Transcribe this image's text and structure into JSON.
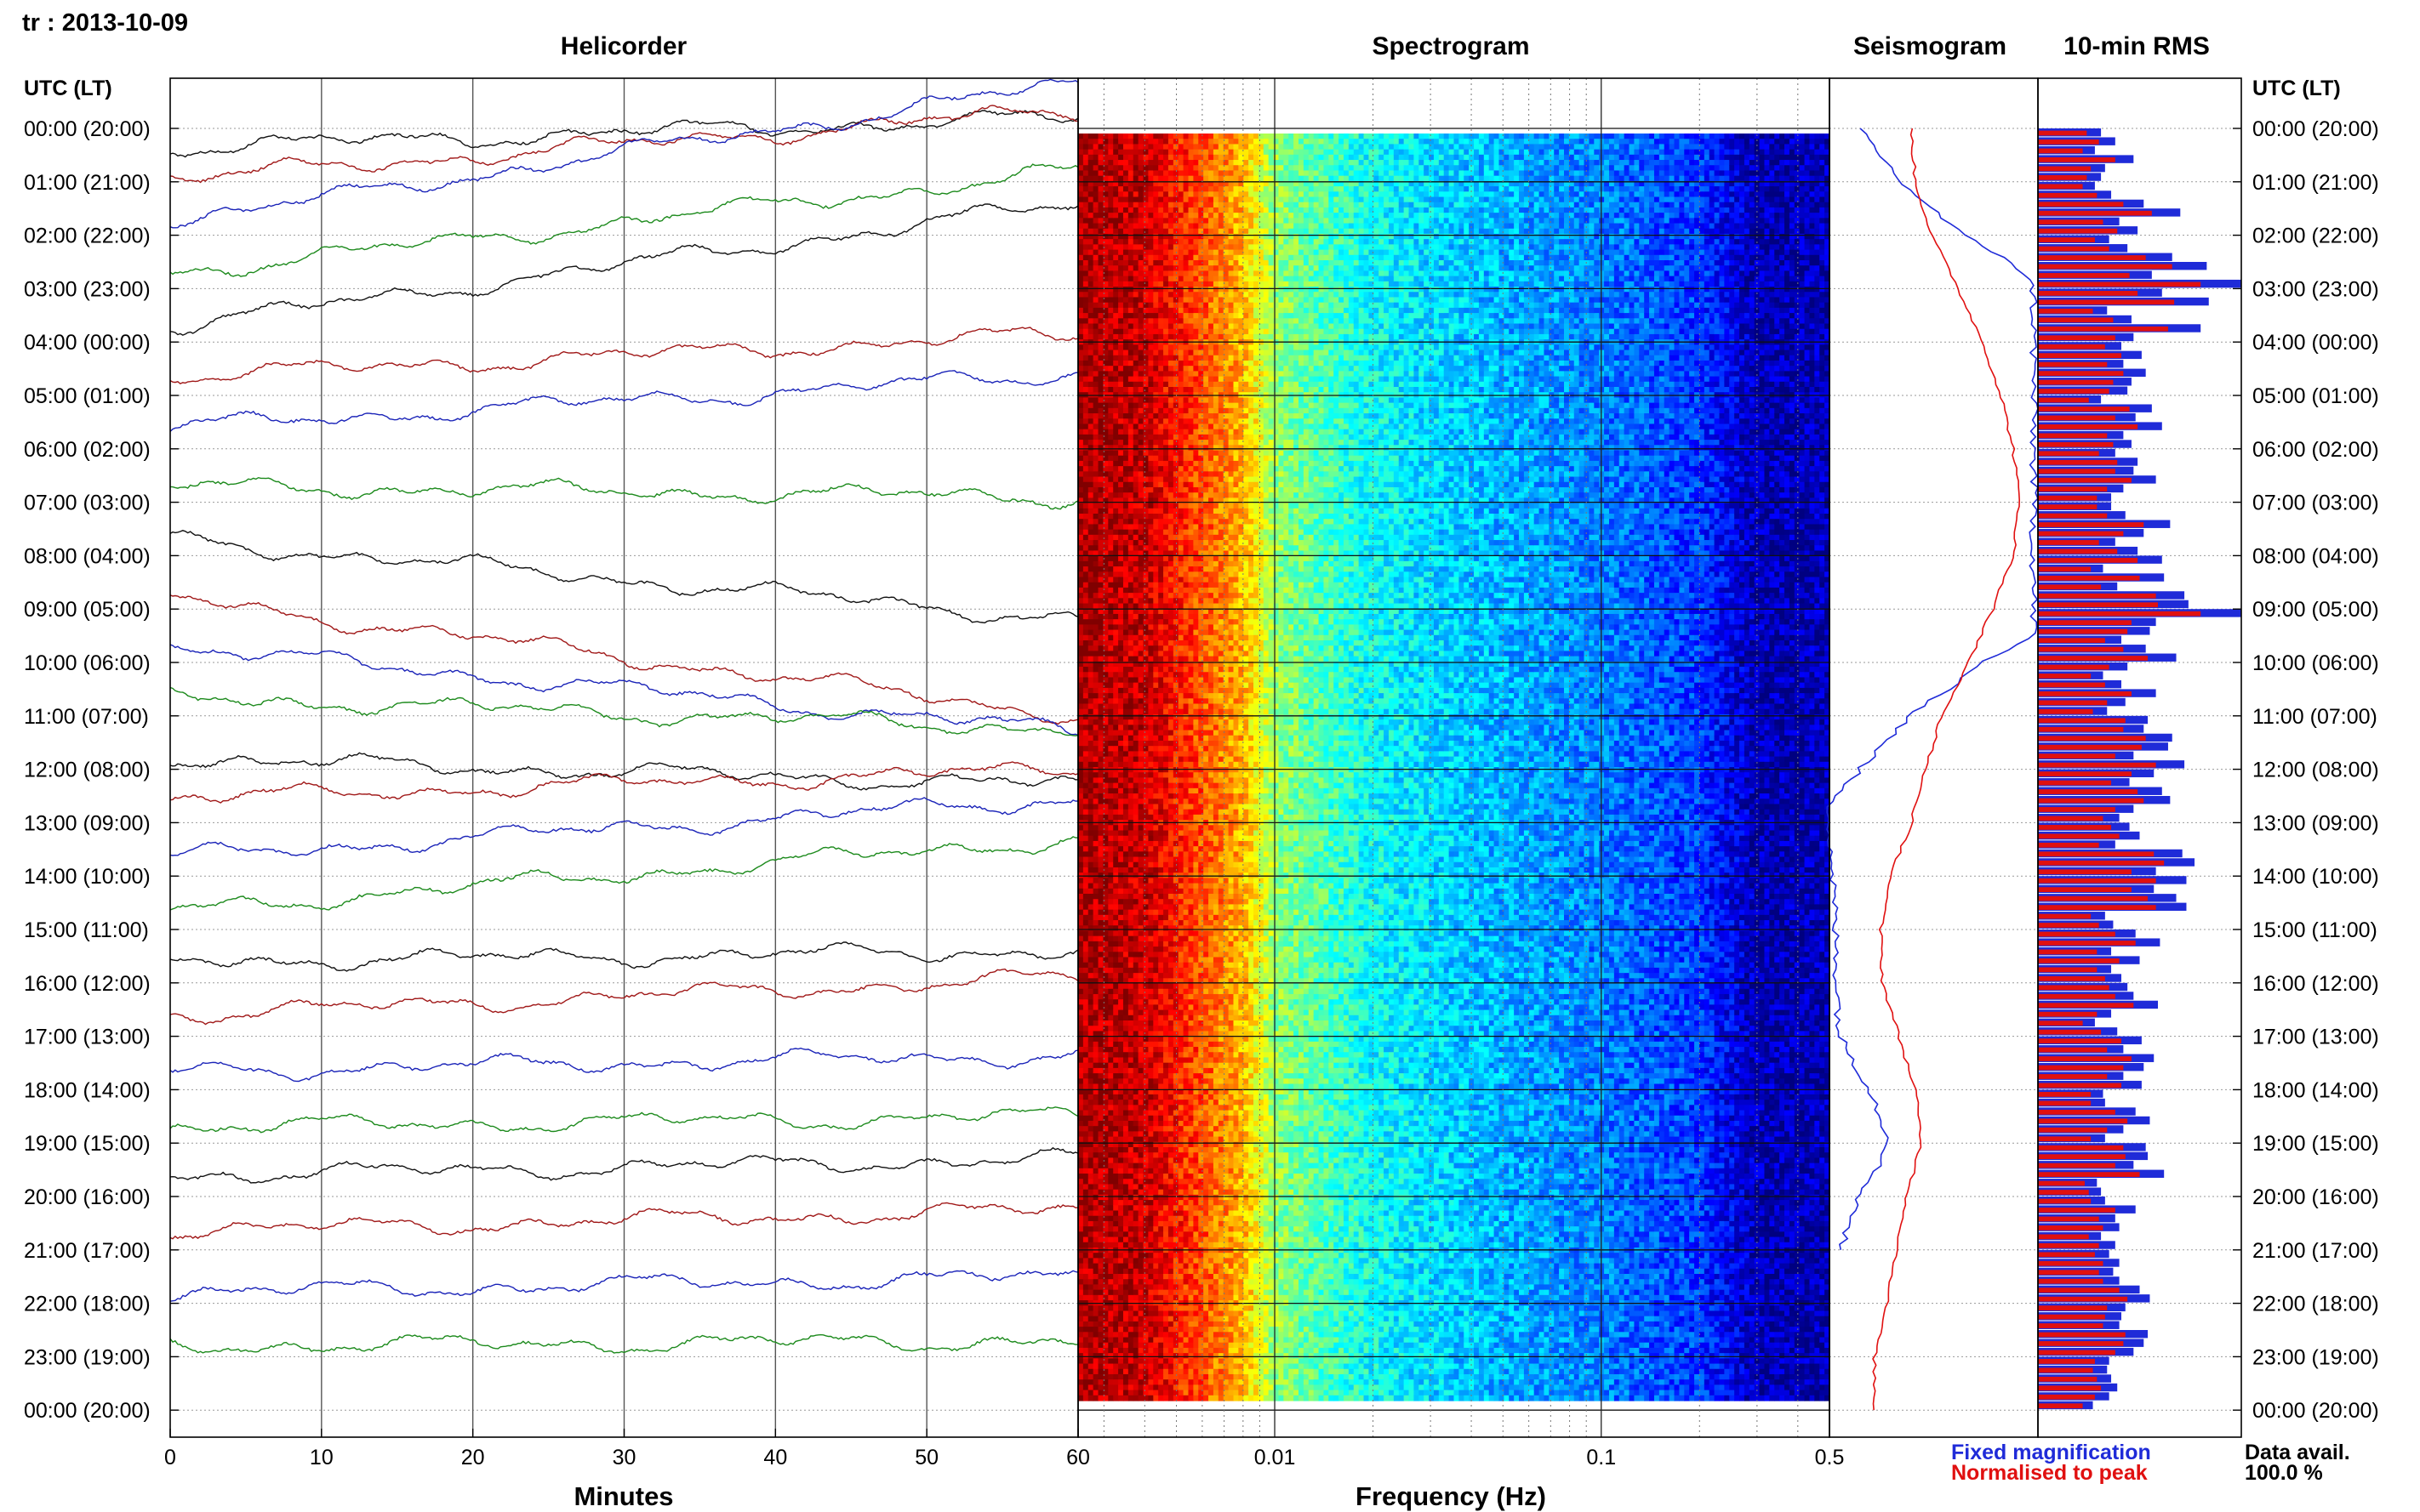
{
  "header": {
    "station_date": "tr : 2013-10-09"
  },
  "panel_titles": {
    "helicorder": "Helicorder",
    "spectrogram": "Spectrogram",
    "seismogram": "Seismogram",
    "rms": "10-min RMS"
  },
  "time_axis": {
    "left_header": "UTC (LT)",
    "right_header": "UTC (LT)",
    "labels": [
      "00:00 (20:00)",
      "01:00 (21:00)",
      "02:00 (22:00)",
      "03:00 (23:00)",
      "04:00 (00:00)",
      "05:00 (01:00)",
      "06:00 (02:00)",
      "07:00 (03:00)",
      "08:00 (04:00)",
      "09:00 (05:00)",
      "10:00 (06:00)",
      "11:00 (07:00)",
      "12:00 (08:00)",
      "13:00 (09:00)",
      "14:00 (10:00)",
      "15:00 (11:00)",
      "16:00 (12:00)",
      "17:00 (13:00)",
      "18:00 (14:00)",
      "19:00 (15:00)",
      "20:00 (16:00)",
      "21:00 (17:00)",
      "22:00 (18:00)",
      "23:00 (19:00)",
      "00:00 (20:00)"
    ]
  },
  "helicorder_axis": {
    "xlabel": "Minutes",
    "ticks": [
      "0",
      "10",
      "20",
      "30",
      "40",
      "50",
      "60"
    ]
  },
  "spectrogram_axis": {
    "xlabel": "Frequency (Hz)",
    "ticks": [
      "0.01",
      "0.1",
      "0.5"
    ]
  },
  "legend": {
    "fixed": "Fixed magnification",
    "normalised": "Normalised to peak",
    "fixed_color": "#1f2bd8",
    "normalised_color": "#e01010"
  },
  "data_availability": {
    "label": "Data avail.",
    "value": "100.0 %"
  },
  "colors": {
    "trace_cycle": [
      "#111111",
      "#a01818",
      "#1a23b8",
      "#1c8a1c"
    ],
    "rms_fixed": "#1f2bd8",
    "rms_normalised": "#e01010"
  },
  "chart_data": [
    {
      "type": "line",
      "panel": "Helicorder",
      "title": "Helicorder",
      "xlabel": "Minutes",
      "xlim": [
        0,
        60
      ],
      "rows": 24,
      "row_offsets_vs_hour_baseline": [
        0.35,
        -0.05,
        -0.25,
        -0.3,
        -0.3,
        -0.35,
        -0.4,
        -0.3,
        -0.3,
        -0.2,
        -0.3,
        -0.35,
        -0.2,
        -0.45,
        -0.35,
        -0.35,
        -0.4,
        -0.4,
        -0.35,
        -0.3,
        -0.4,
        -0.35,
        -0.2,
        -0.2
      ],
      "row_drifts_over_hour": [
        -0.55,
        -1.3,
        -2.6,
        -1.9,
        -2.3,
        -0.8,
        -1.0,
        0.2,
        1.5,
        2.2,
        1.6,
        0.6,
        0.5,
        -0.55,
        -1.1,
        -1.35,
        -0.2,
        -0.7,
        -0.3,
        -0.2,
        -0.3,
        -0.4,
        -0.3,
        -0.1
      ]
    },
    {
      "type": "heatmap",
      "panel": "Spectrogram",
      "title": "Spectrogram",
      "xlabel": "Frequency (Hz)",
      "xscale": "log",
      "xlim": [
        0.0025,
        0.5
      ],
      "colormap": "jet",
      "intensity_profile_by_frequency": {
        "freq": [
          0.0025,
          0.004,
          0.008,
          0.01,
          0.02,
          0.05,
          0.1,
          0.2,
          0.3,
          0.5
        ],
        "intensity": [
          0.96,
          0.93,
          0.7,
          0.52,
          0.38,
          0.3,
          0.25,
          0.18,
          0.05,
          0.05
        ]
      }
    },
    {
      "type": "line",
      "panel": "Seismogram",
      "title": "Seismogram",
      "series": [
        {
          "name": "Fixed magnification",
          "hour": [
            0,
            1,
            2,
            2.5,
            3,
            9.5,
            10,
            11,
            12,
            12.6,
            17,
            18,
            19,
            20,
            21
          ],
          "value": [
            0.15,
            0.35,
            0.65,
            0.9,
            1.0,
            1.0,
            0.75,
            0.4,
            0.15,
            0.0,
            0.05,
            0.2,
            0.3,
            0.15,
            0.05
          ]
        },
        {
          "name": "Normalised to peak",
          "hour": [
            0,
            1,
            2,
            3,
            4,
            5,
            6,
            7,
            8,
            9,
            10,
            11,
            12,
            13,
            14,
            15,
            16,
            17,
            18,
            19,
            20,
            21,
            22,
            23,
            24
          ],
          "value": [
            0.4,
            0.42,
            0.5,
            0.63,
            0.75,
            0.84,
            0.9,
            0.93,
            0.9,
            0.8,
            0.68,
            0.55,
            0.47,
            0.4,
            0.3,
            0.25,
            0.26,
            0.34,
            0.42,
            0.45,
            0.38,
            0.33,
            0.28,
            0.22,
            0.22
          ]
        }
      ]
    },
    {
      "type": "bar",
      "panel": "10-min RMS",
      "title": "10-min RMS",
      "orientation": "horizontal",
      "bins": 144,
      "series": [
        {
          "name": "Fixed magnification",
          "values": [
            0.31,
            0.38,
            0.28,
            0.47,
            0.33,
            0.31,
            0.28,
            0.36,
            0.52,
            0.7,
            0.4,
            0.49,
            0.35,
            0.44,
            0.66,
            0.83,
            0.56,
            1.0,
            0.61,
            0.84,
            0.34,
            0.46,
            0.8,
            0.47,
            0.41,
            0.51,
            0.42,
            0.53,
            0.46,
            0.44,
            0.31,
            0.56,
            0.48,
            0.61,
            0.42,
            0.46,
            0.38,
            0.49,
            0.47,
            0.58,
            0.42,
            0.36,
            0.36,
            0.43,
            0.65,
            0.52,
            0.38,
            0.49,
            0.61,
            0.32,
            0.62,
            0.39,
            0.72,
            0.74,
            1.0,
            0.58,
            0.55,
            0.41,
            0.53,
            0.68,
            0.44,
            0.32,
            0.41,
            0.58,
            0.43,
            0.34,
            0.54,
            0.52,
            0.66,
            0.64,
            0.47,
            0.72,
            0.57,
            0.45,
            0.61,
            0.65,
            0.47,
            0.4,
            0.45,
            0.5,
            0.38,
            0.71,
            0.77,
            0.58,
            0.73,
            0.57,
            0.68,
            0.73,
            0.33,
            0.37,
            0.48,
            0.6,
            0.36,
            0.5,
            0.36,
            0.41,
            0.44,
            0.47,
            0.59,
            0.36,
            0.28,
            0.39,
            0.51,
            0.42,
            0.57,
            0.52,
            0.42,
            0.51,
            0.32,
            0.33,
            0.48,
            0.55,
            0.42,
            0.33,
            0.53,
            0.54,
            0.47,
            0.62,
            0.29,
            0.31,
            0.33,
            0.48,
            0.38,
            0.4,
            0.31,
            0.38,
            0.35,
            0.4,
            0.37,
            0.4,
            0.5,
            0.55,
            0.43,
            0.41,
            0.4,
            0.54,
            0.52,
            0.47,
            0.35,
            0.34,
            0.36,
            0.39,
            0.35,
            0.27
          ]
        },
        {
          "name": "Normalised to peak",
          "values": [
            0.24,
            0.3,
            0.22,
            0.38,
            0.26,
            0.24,
            0.22,
            0.29,
            0.42,
            0.56,
            0.32,
            0.39,
            0.28,
            0.35,
            0.53,
            0.66,
            0.45,
            0.8,
            0.49,
            0.67,
            0.27,
            0.37,
            0.64,
            0.38,
            0.33,
            0.41,
            0.34,
            0.42,
            0.37,
            0.35,
            0.25,
            0.45,
            0.38,
            0.49,
            0.34,
            0.37,
            0.3,
            0.39,
            0.38,
            0.46,
            0.34,
            0.29,
            0.29,
            0.34,
            0.52,
            0.42,
            0.3,
            0.39,
            0.49,
            0.26,
            0.5,
            0.31,
            0.58,
            0.59,
            0.8,
            0.46,
            0.44,
            0.33,
            0.42,
            0.54,
            0.35,
            0.26,
            0.33,
            0.46,
            0.34,
            0.27,
            0.43,
            0.42,
            0.53,
            0.51,
            0.38,
            0.58,
            0.46,
            0.36,
            0.49,
            0.52,
            0.38,
            0.32,
            0.36,
            0.4,
            0.3,
            0.57,
            0.62,
            0.46,
            0.58,
            0.46,
            0.54,
            0.58,
            0.26,
            0.3,
            0.38,
            0.48,
            0.29,
            0.4,
            0.29,
            0.33,
            0.35,
            0.38,
            0.47,
            0.29,
            0.22,
            0.31,
            0.41,
            0.34,
            0.46,
            0.42,
            0.34,
            0.41,
            0.26,
            0.26,
            0.38,
            0.44,
            0.34,
            0.26,
            0.42,
            0.43,
            0.38,
            0.5,
            0.23,
            0.25,
            0.26,
            0.38,
            0.3,
            0.32,
            0.25,
            0.3,
            0.28,
            0.32,
            0.3,
            0.32,
            0.4,
            0.44,
            0.34,
            0.33,
            0.32,
            0.43,
            0.42,
            0.38,
            0.28,
            0.27,
            0.29,
            0.31,
            0.28,
            0.22
          ]
        }
      ]
    }
  ]
}
